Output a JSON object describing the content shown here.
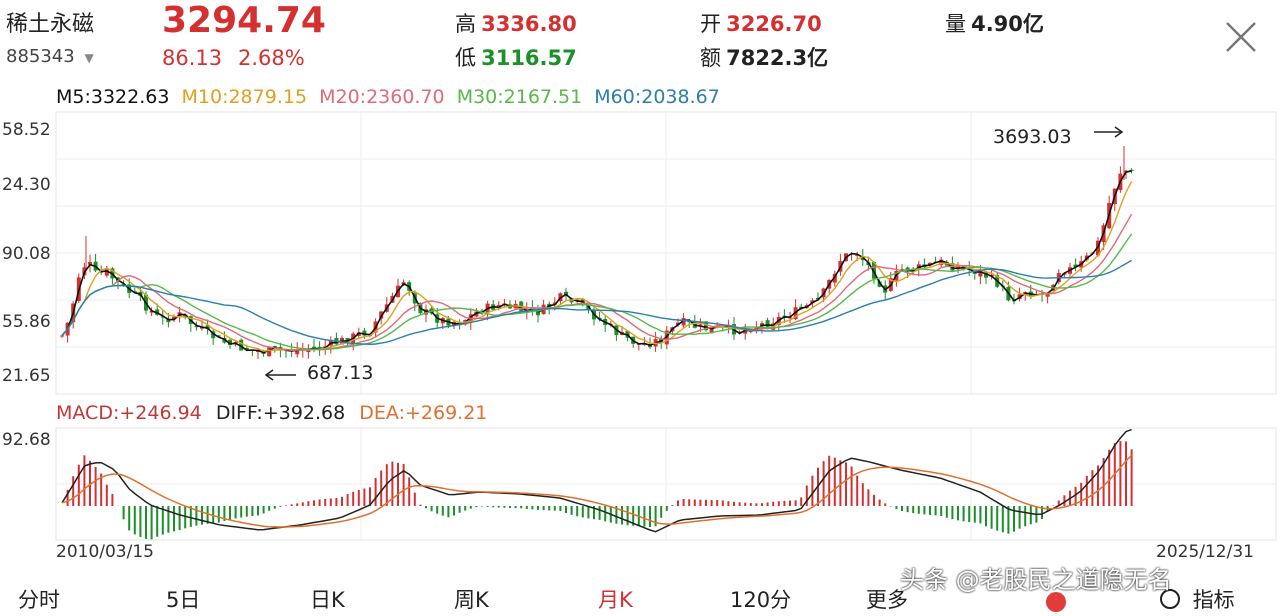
{
  "header": {
    "stock_name": "稀土永磁",
    "code": "885343",
    "price": "3294.74",
    "change": "86.13",
    "change_pct": "2.68%",
    "high_label": "高",
    "high": "3336.80",
    "low_label": "低",
    "low": "3116.57",
    "open_label": "开",
    "open": "3226.70",
    "amount_label": "额",
    "amount": "7822.3亿",
    "volume_label": "量",
    "volume": "4.90亿"
  },
  "ma_legend": {
    "m5": "M5:3322.63",
    "m10": "M10:2879.15",
    "m20": "M20:2360.70",
    "m30": "M30:2167.51",
    "m60": "M60:2038.67"
  },
  "price_axis": [
    "58.52",
    "24.30",
    "90.08",
    "55.86",
    "21.65"
  ],
  "annotations": {
    "high_mark": "3693.03",
    "low_mark": "687.13"
  },
  "macd_legend": {
    "macd": "MACD:+246.94",
    "diff": "DIFF:+392.68",
    "dea": "DEA:+269.21"
  },
  "macd_axis": [
    "92.68"
  ],
  "dates": {
    "start": "2010/03/15",
    "end": "2025/12/31"
  },
  "tabs": [
    "分时",
    "5日",
    "日K",
    "周K",
    "月K",
    "120分",
    "更多",
    "指标"
  ],
  "active_tab": "月K",
  "watermark": "头条 @老股民之道隐无名",
  "colors": {
    "up": "#d43030",
    "down": "#1a8f2a",
    "m5": "#111111",
    "m10": "#e0a020",
    "m20": "#e06a7a",
    "m30": "#58b84a",
    "m60": "#2a7fb0"
  }
}
